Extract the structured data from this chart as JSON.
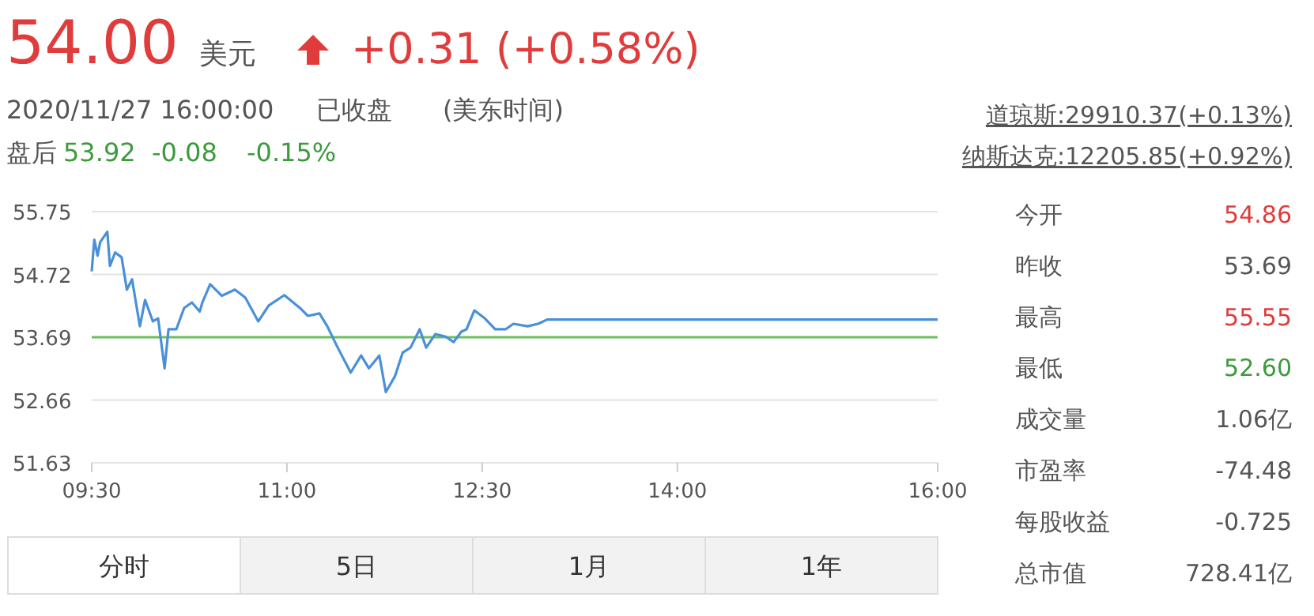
{
  "chart_data": {
    "type": "line",
    "x": [
      9.5,
      9.52,
      9.545,
      9.565,
      9.62,
      9.64,
      9.68,
      9.73,
      9.77,
      9.81,
      9.87,
      9.91,
      9.97,
      10.01,
      10.06,
      10.09,
      10.15,
      10.21,
      10.27,
      10.33,
      10.35,
      10.41,
      10.5,
      10.6,
      10.68,
      10.78,
      10.82,
      10.86,
      10.98,
      11.1,
      11.16,
      11.25,
      11.31,
      11.39,
      11.49,
      11.57,
      11.63,
      11.71,
      11.76,
      11.83,
      11.89,
      11.95,
      12.02,
      12.07,
      12.14,
      12.22,
      12.28,
      12.34,
      12.38,
      12.44,
      12.52,
      12.6,
      12.68,
      12.74,
      12.85,
      12.93,
      13.0,
      16.0
    ],
    "series": [
      {
        "color": "#4a90d9",
        "values": [
          54.77,
          55.29,
          55.03,
          55.25,
          55.42,
          54.86,
          55.08,
          55.0,
          54.47,
          54.64,
          53.87,
          54.3,
          53.95,
          54.0,
          53.18,
          53.82,
          53.82,
          54.17,
          54.26,
          54.11,
          54.26,
          54.56,
          54.37,
          54.47,
          54.34,
          53.95,
          54.08,
          54.21,
          54.38,
          54.17,
          54.04,
          54.08,
          53.87,
          53.52,
          53.11,
          53.39,
          53.18,
          53.39,
          52.79,
          53.05,
          53.44,
          53.52,
          53.82,
          53.52,
          53.74,
          53.7,
          53.61,
          53.78,
          53.82,
          54.13,
          54.0,
          53.82,
          53.82,
          53.91,
          53.87,
          53.91,
          53.98,
          53.98
        ]
      }
    ],
    "xlim": [
      9.5,
      16
    ],
    "xticks": [
      {
        "value": 9.5,
        "label": "09:30"
      },
      {
        "value": 11,
        "label": "11:00"
      },
      {
        "value": 12.5,
        "label": "12:30"
      },
      {
        "value": 14,
        "label": "14:00"
      },
      {
        "value": 16,
        "label": "16:00"
      }
    ],
    "ylim": [
      51.63,
      55.75
    ],
    "yticks": [
      51.63,
      52.66,
      53.69,
      54.72,
      55.75
    ],
    "grid": "y",
    "ref_lines": [
      {
        "axis": "y",
        "value": 53.69,
        "color": "#6cbf5c"
      }
    ],
    "annotations": [
      "54.00",
      "美元",
      "+0.31 (+0.58%)",
      "2020/11/27 16:00:00",
      "已收盘",
      "(美东时间)",
      "盘后",
      "53.92",
      "-0.08",
      "-0.15%",
      "道琼斯:29910.37(+0.13%)",
      "纳斯达克:12205.85(+0.92%)",
      "今开",
      "54.86",
      "昨收",
      "53.69",
      "最高",
      "55.55",
      "最低",
      "52.60",
      "成交量",
      "1.06亿",
      "市盈率",
      "-74.48",
      "每股收益",
      "-0.725",
      "总市值",
      "728.41亿",
      "分时",
      "5日",
      "1月",
      "1年"
    ]
  }
}
